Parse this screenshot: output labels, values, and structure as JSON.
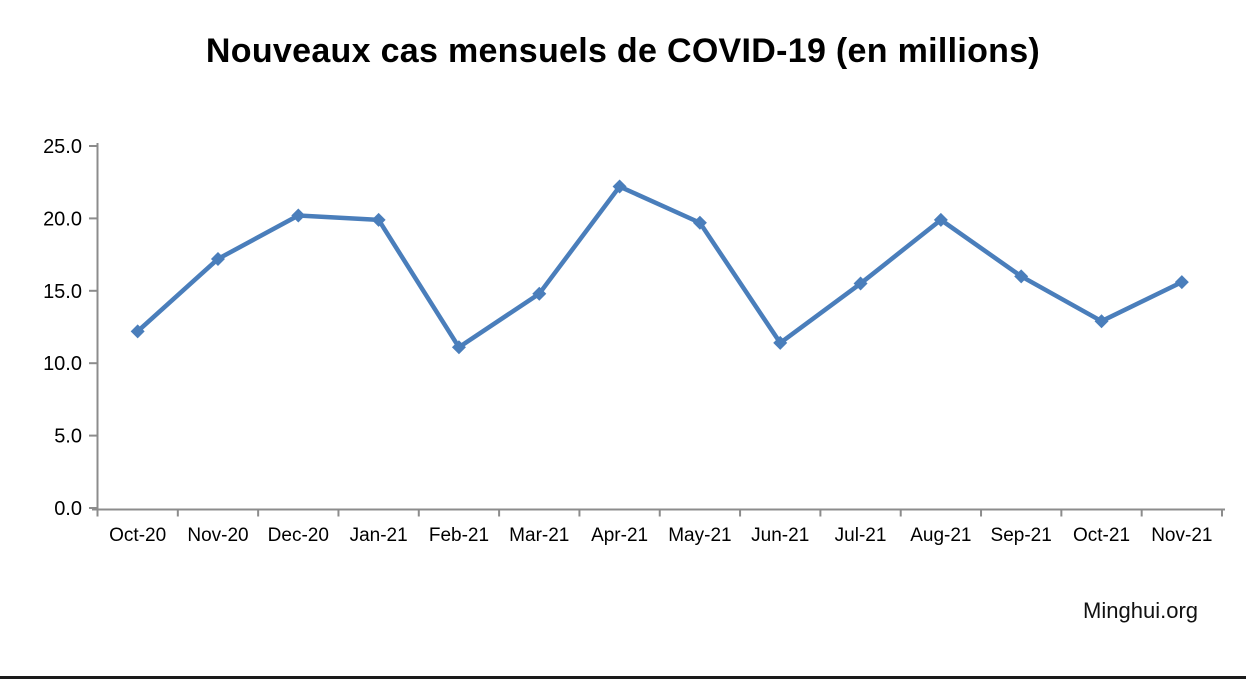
{
  "chart_data": {
    "type": "line",
    "title": "Nouveaux cas mensuels de COVID-19 (en millions)",
    "categories": [
      "Oct-20",
      "Nov-20",
      "Dec-20",
      "Jan-21",
      "Feb-21",
      "Mar-21",
      "Apr-21",
      "May-21",
      "Jun-21",
      "Jul-21",
      "Aug-21",
      "Sep-21",
      "Oct-21",
      "Nov-21"
    ],
    "values": [
      12.2,
      17.2,
      20.2,
      19.9,
      11.1,
      14.8,
      22.2,
      19.7,
      11.4,
      15.5,
      19.9,
      16.0,
      12.9,
      15.6
    ],
    "xlabel": "",
    "ylabel": "",
    "ylim": [
      0,
      25
    ],
    "y_ticks": [
      0,
      5,
      10,
      15,
      20,
      25
    ],
    "y_tick_labels": [
      "0.0",
      "5.0",
      "10.0",
      "15.0",
      "20.0",
      "25.0"
    ],
    "grid": false,
    "legend": "none",
    "marker": "diamond",
    "line_color": "#4A7EBB",
    "axis_color": "#8C8C8C",
    "tick_label_color": "#000000"
  },
  "footer": {
    "watermark": "Minghui.org"
  }
}
